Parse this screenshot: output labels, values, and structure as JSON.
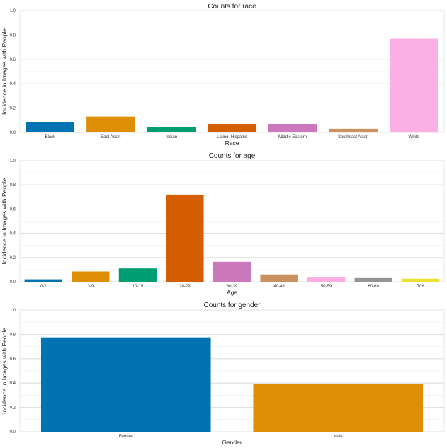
{
  "chart_data": [
    {
      "type": "bar",
      "title": "Counts for race",
      "xlabel": "Race",
      "ylabel": "Incidence in Images with People",
      "ylim": [
        0,
        1.0
      ],
      "yticks": [
        "0.0",
        "0.2",
        "0.4",
        "0.6",
        "0.8",
        "1.0"
      ],
      "grid": true,
      "categories": [
        "Black",
        "East Asian",
        "Indian",
        "Latino_Hispanic",
        "Middle Eastern",
        "Southeast Asian",
        "White"
      ],
      "values": [
        0.085,
        0.13,
        0.045,
        0.07,
        0.07,
        0.03,
        0.77
      ],
      "colors": [
        "#0173b2",
        "#de8f05",
        "#029e73",
        "#d55e00",
        "#cc78bc",
        "#ca9161",
        "#fbafe4"
      ]
    },
    {
      "type": "bar",
      "title": "Counts for age",
      "xlabel": "Age",
      "ylabel": "Incidence in Images with People",
      "ylim": [
        0,
        1.0
      ],
      "yticks": [
        "0.0",
        "0.2",
        "0.4",
        "0.6",
        "0.8",
        "1.0"
      ],
      "grid": true,
      "categories": [
        "0-2",
        "3-9",
        "10-19",
        "20-29",
        "30-39",
        "40-49",
        "50-59",
        "60-69",
        "70+"
      ],
      "values": [
        0.02,
        0.085,
        0.11,
        0.72,
        0.165,
        0.06,
        0.04,
        0.03,
        0.025
      ],
      "colors": [
        "#0173b2",
        "#de8f05",
        "#029e73",
        "#d55e00",
        "#cc78bc",
        "#ca9161",
        "#fbafe4",
        "#949494",
        "#ece133"
      ]
    },
    {
      "type": "bar",
      "title": "Counts for gender",
      "xlabel": "Gender",
      "ylabel": "Incidence in Images with People",
      "ylim": [
        0,
        1.0
      ],
      "yticks": [
        "0.0",
        "0.2",
        "0.4",
        "0.6",
        "0.8",
        "1.0"
      ],
      "grid": true,
      "categories": [
        "Female",
        "Male"
      ],
      "values": [
        0.775,
        0.39
      ],
      "colors": [
        "#0173b2",
        "#de8f05"
      ]
    }
  ]
}
